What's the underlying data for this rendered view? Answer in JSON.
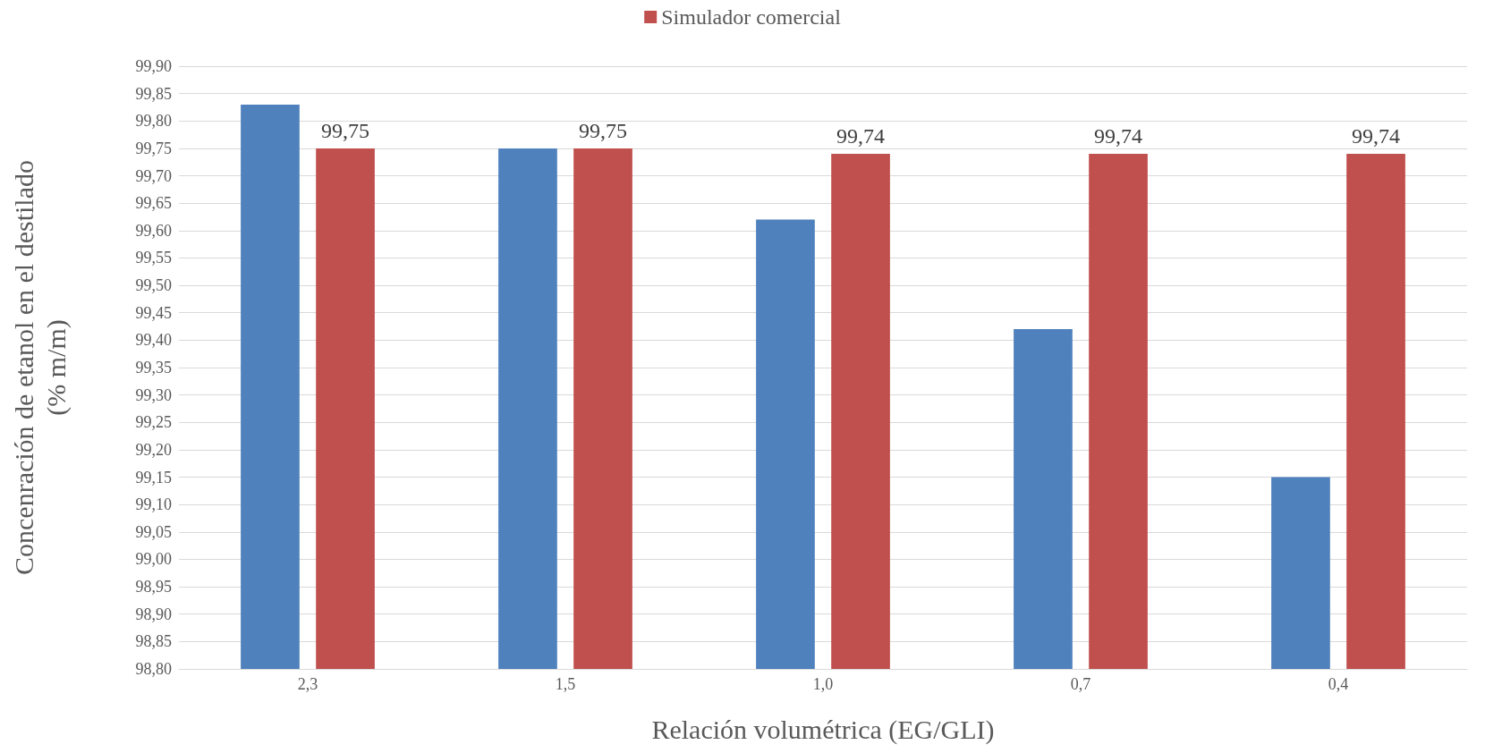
{
  "chart_data": {
    "type": "bar",
    "xlabel": "Relación volumétrica (EG/GLI)",
    "ylabel": "Concenración de etanol en el destilado\n(% m/m)",
    "categories": [
      "2,3",
      "1,5",
      "1,0",
      "0,7",
      "0,4"
    ],
    "series": [
      {
        "color": "#4f81bd",
        "values": [
          99.83,
          99.75,
          99.62,
          99.42,
          99.15
        ]
      },
      {
        "name": "Simulador comercial",
        "color": "#c0504d",
        "values": [
          99.75,
          99.75,
          99.74,
          99.74,
          99.74
        ],
        "value_labels": [
          "99,75",
          "99,75",
          "99,74",
          "99,74",
          "99,74"
        ]
      }
    ],
    "ylim": [
      98.8,
      99.9
    ],
    "yticks": [
      {
        "value": 98.8,
        "label": "98,80"
      },
      {
        "value": 98.85,
        "label": "98,85"
      },
      {
        "value": 98.9,
        "label": "98,90"
      },
      {
        "value": 98.95,
        "label": "98,95"
      },
      {
        "value": 99.0,
        "label": "99,00"
      },
      {
        "value": 99.05,
        "label": "99,05"
      },
      {
        "value": 99.1,
        "label": "99,10"
      },
      {
        "value": 99.15,
        "label": "99,15"
      },
      {
        "value": 99.2,
        "label": "99,20"
      },
      {
        "value": 99.25,
        "label": "99,25"
      },
      {
        "value": 99.3,
        "label": "99,30"
      },
      {
        "value": 99.35,
        "label": "99,35"
      },
      {
        "value": 99.4,
        "label": "99,40"
      },
      {
        "value": 99.45,
        "label": "99,45"
      },
      {
        "value": 99.5,
        "label": "99,50"
      },
      {
        "value": 99.55,
        "label": "99,55"
      },
      {
        "value": 99.6,
        "label": "99,60"
      },
      {
        "value": 99.65,
        "label": "99,65"
      },
      {
        "value": 99.7,
        "label": "99,70"
      },
      {
        "value": 99.75,
        "label": "99,75"
      },
      {
        "value": 99.8,
        "label": "99,80"
      },
      {
        "value": 99.85,
        "label": "99,85"
      },
      {
        "value": 99.9,
        "label": "99,90"
      }
    ],
    "grid": "y",
    "legend": "top"
  }
}
